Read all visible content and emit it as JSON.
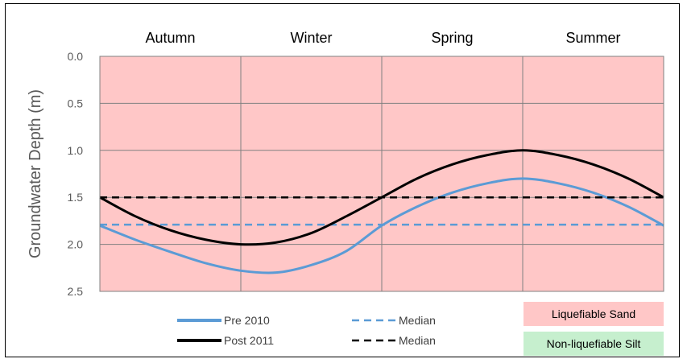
{
  "chart_data": {
    "type": "line",
    "title": "",
    "xlabel": "",
    "ylabel": "Groundwater Depth (m)",
    "seasons": [
      "Autumn",
      "Winter",
      "Spring",
      "Summer"
    ],
    "ylim": [
      2.5,
      0.0
    ],
    "y_inverted": true,
    "y_ticks": [
      "0.0",
      "0.5",
      "1.0",
      "1.5",
      "2.0",
      "2.5"
    ],
    "y_tick_values": [
      0.0,
      0.5,
      1.0,
      1.5,
      2.0,
      2.5
    ],
    "x_range": [
      0,
      4
    ],
    "grid": true,
    "background_zone": {
      "label": "Liquefiable Sand",
      "color": "#ffc7c7"
    },
    "series": [
      {
        "name": "Pre 2010",
        "style": "solid",
        "color": "#5b9bd5",
        "x": [
          0,
          0.25,
          0.5,
          0.75,
          1,
          1.25,
          1.5,
          1.75,
          2,
          2.25,
          2.5,
          2.75,
          3,
          3.25,
          3.5,
          3.75,
          4
        ],
        "values": [
          1.8,
          1.95,
          2.08,
          2.2,
          2.28,
          2.3,
          2.22,
          2.07,
          1.8,
          1.6,
          1.45,
          1.35,
          1.3,
          1.35,
          1.45,
          1.6,
          1.8
        ]
      },
      {
        "name": "Median",
        "style": "dashed",
        "color": "#5b9bd5",
        "x": [
          0,
          4
        ],
        "values": [
          1.79,
          1.79
        ]
      },
      {
        "name": "Post 2011",
        "style": "solid",
        "color": "#000000",
        "x": [
          0,
          0.25,
          0.5,
          0.75,
          1,
          1.25,
          1.5,
          1.75,
          2,
          2.25,
          2.5,
          2.75,
          3,
          3.25,
          3.5,
          3.75,
          4
        ],
        "values": [
          1.5,
          1.7,
          1.85,
          1.95,
          2.0,
          1.98,
          1.88,
          1.7,
          1.5,
          1.3,
          1.15,
          1.05,
          1.0,
          1.05,
          1.15,
          1.3,
          1.5
        ]
      },
      {
        "name": "Median",
        "style": "dashed",
        "color": "#000000",
        "x": [
          0,
          4
        ],
        "values": [
          1.5,
          1.5
        ]
      }
    ],
    "legend": {
      "placement": "bottom",
      "zones": [
        {
          "label": "Liquefiable Sand",
          "color": "#ffc7c7"
        },
        {
          "label": "Non-liquefiable Silt",
          "color": "#c6efce"
        }
      ]
    }
  }
}
